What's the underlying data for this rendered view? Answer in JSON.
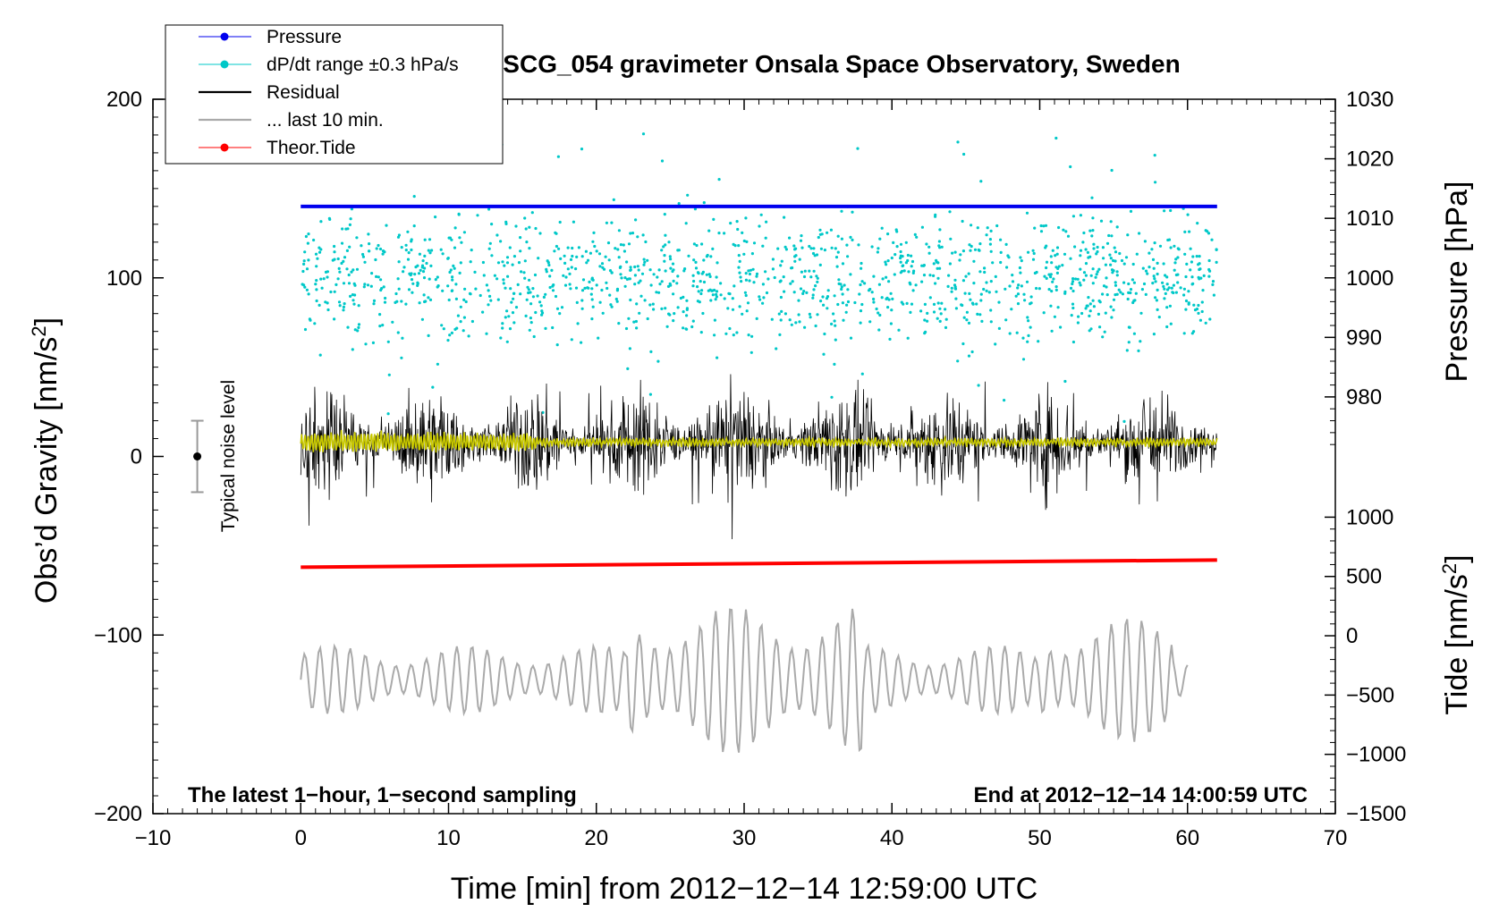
{
  "chart_data": {
    "type": "line",
    "title": "SCG_054 gravimeter Onsala Space Observatory, Sweden",
    "xlabel": "Time [min] from 2012−12−14 12:59:00 UTC",
    "ylabel_left": "Obs’d Gravity [nm/s",
    "ylabel_left_sup": "2",
    "ylabel_left_tail": "]",
    "ylabel_right_pressure": "Pressure [hPa]",
    "ylabel_right_tide": "Tide [nm/s",
    "ylabel_right_tide_sup": "2",
    "ylabel_right_tide_tail": "]",
    "note_left": "The latest 1−hour, 1−second sampling",
    "note_right": "End at 2012−12−14 14:00:59 UTC",
    "noise_label": "Typical noise level",
    "noise_level": {
      "x": -7,
      "center": 0,
      "halfwidth": 20
    },
    "xlim": [
      -10,
      70
    ],
    "ylim_left": [
      -200,
      200
    ],
    "xticks": [
      "−10",
      "0",
      "10",
      "20",
      "30",
      "40",
      "50",
      "60",
      "70"
    ],
    "yticks_left": [
      "200",
      "100",
      "0",
      "−100",
      "−200"
    ],
    "yticks_pressure": [
      "1030",
      "1020",
      "1010",
      "1000",
      "990",
      "980"
    ],
    "yticks_tide": [
      "1000",
      "500",
      "0",
      "−500",
      "−1000",
      "−1500"
    ],
    "pressure_range": [
      970,
      1030
    ],
    "tide_range": [
      -1500,
      1000
    ],
    "grid": false,
    "legend_position": "top-left",
    "legend": [
      {
        "label": "Pressure",
        "color": "#0000ee",
        "marker": true
      },
      {
        "label": "dP/dt range ±0.3 hPa/s",
        "color": "#00c8c8",
        "marker": true
      },
      {
        "label": "Residual",
        "color": "#000000",
        "marker": false
      },
      {
        "label": "... last 10 min.",
        "color": "#aaaaaa",
        "marker": false
      },
      {
        "label": "Theor.Tide",
        "color": "#ff0000",
        "marker": true
      }
    ],
    "series": [
      {
        "name": "Pressure",
        "unit": "hPa",
        "x_range": [
          0,
          62
        ],
        "values_start": 1012.0,
        "values_end": 1012.0
      },
      {
        "name": "dP/dt range ±0.3 hPa/s",
        "center": 1000,
        "typical_spread": 6
      },
      {
        "name": "Residual",
        "x_range": [
          0,
          62
        ],
        "center": 8,
        "typical_amplitude": 25
      },
      {
        "name": "... last 10 min.",
        "x_range": [
          0,
          60
        ],
        "center": -125,
        "typical_amplitude": 35
      },
      {
        "name": "Theor.Tide",
        "x_range": [
          0,
          62
        ],
        "values_start": -62,
        "values_end": -58
      }
    ],
    "colors": {
      "pressure": "#0000ee",
      "dpdt": "#00c8c8",
      "residual": "#000000",
      "smoothed": "#c8c800",
      "last10": "#aaaaaa",
      "tide": "#ff0000"
    }
  }
}
